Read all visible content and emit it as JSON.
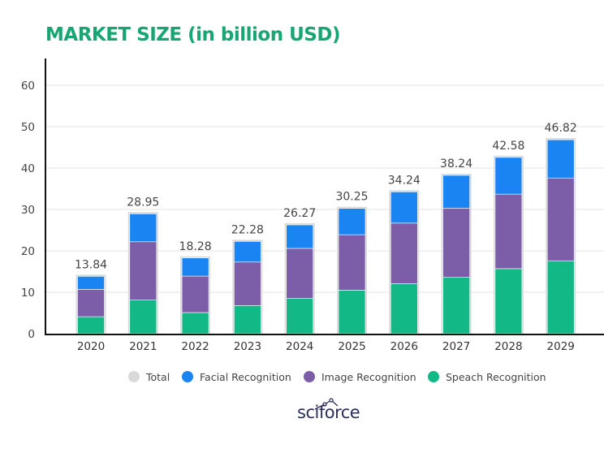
{
  "chart_data": {
    "type": "bar",
    "stacked": true,
    "title": "MARKET SIZE (in billion USD)",
    "categories": [
      "2020",
      "2021",
      "2022",
      "2023",
      "2024",
      "2025",
      "2026",
      "2027",
      "2028",
      "2029"
    ],
    "series": [
      {
        "name": "Speach Recognition",
        "color": "#12b886",
        "values": [
          4.1,
          8.1,
          5.1,
          6.8,
          8.5,
          10.5,
          12.1,
          13.6,
          15.7,
          17.6
        ]
      },
      {
        "name": "Image Recognition",
        "color": "#7b5ea7",
        "values": [
          6.6,
          14.1,
          8.8,
          10.5,
          12.1,
          13.4,
          14.6,
          16.7,
          18.0,
          20.0
        ]
      },
      {
        "name": "Facial Recognition",
        "color": "#1a84f2",
        "values": [
          3.14,
          6.75,
          4.38,
          4.98,
          5.67,
          6.35,
          7.54,
          7.94,
          8.88,
          9.22
        ]
      }
    ],
    "totals": {
      "name": "Total",
      "color": "#d9d9d9",
      "values": [
        13.84,
        28.95,
        18.28,
        22.28,
        26.27,
        30.25,
        34.24,
        38.24,
        42.58,
        46.82
      ],
      "labels": [
        "13.84",
        "28.95",
        "18.28",
        "22.28",
        "26.27",
        "30.25",
        "34.24",
        "38.24",
        "42.58",
        "46.82"
      ]
    },
    "ylim": [
      0,
      60
    ],
    "yticks": [
      "0",
      "10",
      "20",
      "30",
      "40",
      "50",
      "60"
    ],
    "grid": true,
    "legend_position": "bottom",
    "legend": [
      {
        "label": "Total",
        "color": "#d9d9d9"
      },
      {
        "label": "Facial Recognition",
        "color": "#1a84f2"
      },
      {
        "label": "Image Recognition",
        "color": "#7b5ea7"
      },
      {
        "label": "Speach Recognition",
        "color": "#12b886"
      }
    ]
  },
  "brand": {
    "logo_text": "sciforce"
  }
}
